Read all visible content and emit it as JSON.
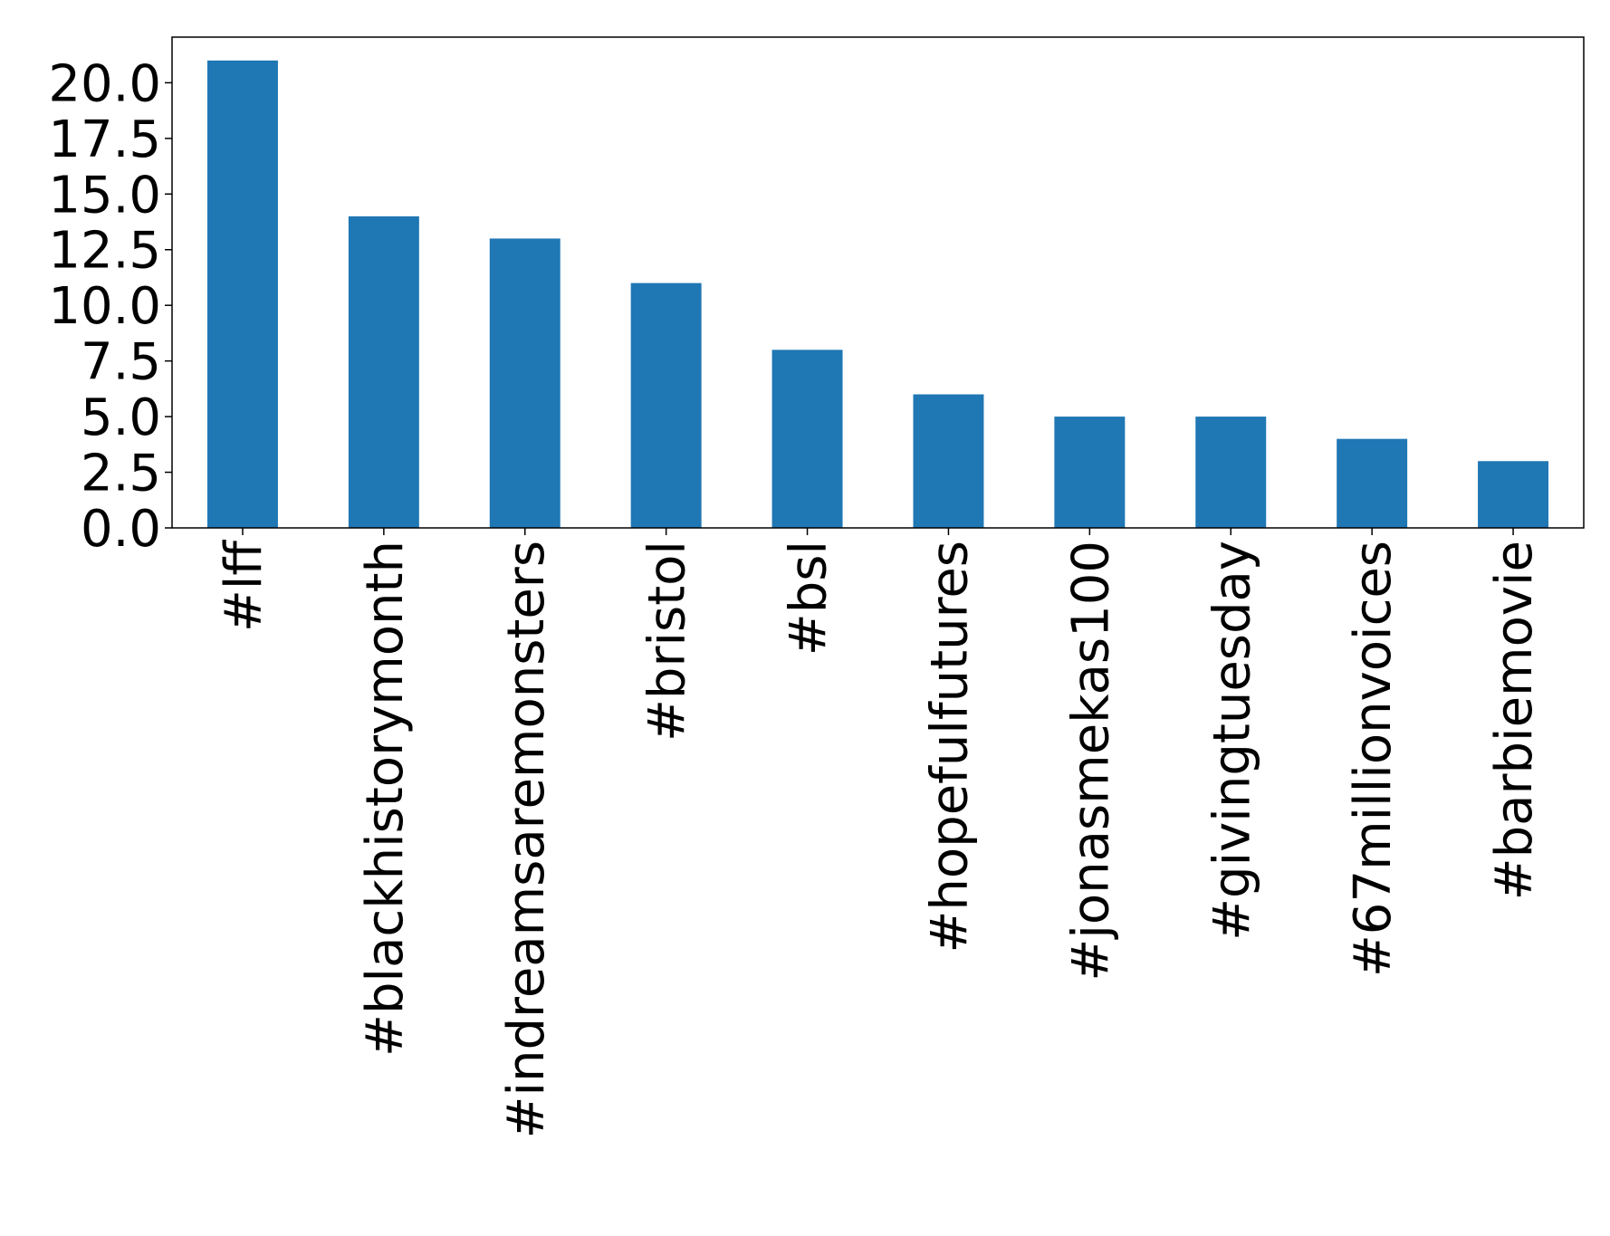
{
  "chart_data": {
    "type": "bar",
    "title": "",
    "xlabel": "",
    "ylabel": "",
    "categories": [
      "#lff",
      "#blackhistorymonth",
      "#indreamsaremonsters",
      "#bristol",
      "#bsl",
      "#hopefulfutures",
      "#jonasmekas100",
      "#givingtuesday",
      "#67millionvoices",
      "#barbiemovie"
    ],
    "values": [
      21,
      14,
      13,
      11,
      8,
      6,
      5,
      5,
      4,
      3
    ],
    "ylim": [
      0,
      22.05
    ],
    "yticks": [
      "0.0",
      "2.5",
      "5.0",
      "7.5",
      "10.0",
      "12.5",
      "15.0",
      "17.5",
      "20.0"
    ],
    "bar_color": "#1f77b4",
    "grid": false,
    "legend": "none"
  }
}
